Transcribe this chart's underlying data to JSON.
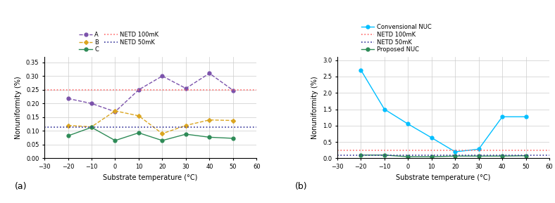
{
  "chart_a": {
    "x": [
      -20,
      -10,
      0,
      10,
      20,
      30,
      40,
      50
    ],
    "A": [
      0.218,
      0.2,
      0.17,
      0.25,
      0.3,
      0.255,
      0.31,
      0.248
    ],
    "B": [
      0.12,
      0.115,
      0.173,
      0.155,
      0.09,
      0.12,
      0.14,
      0.138
    ],
    "C": [
      0.082,
      0.113,
      0.065,
      0.093,
      0.065,
      0.088,
      0.077,
      0.073
    ],
    "NETD_100mK": 0.25,
    "NETD_50mK": 0.115,
    "ylim": [
      0,
      0.37
    ],
    "yticks": [
      0,
      0.05,
      0.1,
      0.15,
      0.2,
      0.25,
      0.3,
      0.35
    ],
    "xlim": [
      -30,
      60
    ],
    "xticks": [
      -30,
      -20,
      -10,
      0,
      10,
      20,
      30,
      40,
      50,
      60
    ],
    "xlabel": "Substrate temperature (°C)",
    "ylabel": "Nonuniformity (%)",
    "color_A": "#7B52AB",
    "color_B": "#DAA520",
    "color_C": "#2E8B57",
    "color_NETD100": "#FF6B6B",
    "color_NETD50": "#333399",
    "label_a": "(a)"
  },
  "chart_b": {
    "x": [
      -20,
      -10,
      0,
      10,
      20,
      30,
      40,
      50
    ],
    "conventional": [
      2.7,
      1.5,
      1.05,
      0.63,
      0.2,
      0.28,
      1.27,
      1.27
    ],
    "proposed": [
      0.1,
      0.1,
      0.05,
      0.05,
      0.07,
      0.07,
      0.07,
      0.08
    ],
    "NETD_100mK": 0.25,
    "NETD_50mK": 0.1,
    "ylim": [
      0,
      3.1
    ],
    "yticks": [
      0,
      0.5,
      1,
      1.5,
      2,
      2.5,
      3
    ],
    "xlim": [
      -30,
      60
    ],
    "xticks": [
      -30,
      -20,
      -10,
      0,
      10,
      20,
      30,
      40,
      50,
      60
    ],
    "xlabel": "Substrate temperature (°C)",
    "ylabel": "Nonuniformity (%)",
    "color_conventional": "#00BFFF",
    "color_proposed": "#2E8B57",
    "color_NETD100": "#FF6B6B",
    "color_NETD50": "#333399",
    "label_b": "(b)"
  }
}
